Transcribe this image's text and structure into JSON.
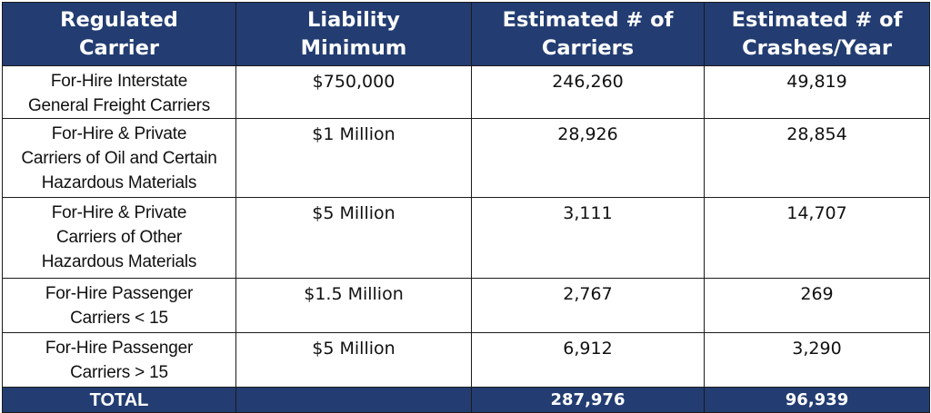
{
  "headers": {
    "carrier": [
      "Regulated",
      "Carrier"
    ],
    "liability": [
      "Liability",
      "Minimum"
    ],
    "carriers": [
      "Estimated # of",
      "Carriers"
    ],
    "crashes": [
      "Estimated # of",
      "Crashes/Year"
    ]
  },
  "rows": [
    {
      "carrier": [
        "For-Hire Interstate",
        "General Freight Carriers"
      ],
      "liability": "$750,000",
      "carriers": "246,260",
      "crashes": "49,819"
    },
    {
      "carrier": [
        "For-Hire & Private",
        "Carriers of Oil and Certain",
        "Hazardous Materials"
      ],
      "liability": "$1 Million",
      "carriers": "28,926",
      "crashes": "28,854"
    },
    {
      "carrier": [
        "For-Hire & Private",
        "Carriers of Other",
        "Hazardous Materials"
      ],
      "liability": "$5 Million",
      "carriers": "3,111",
      "crashes": "14,707"
    },
    {
      "carrier": [
        "For-Hire Passenger",
        "Carriers < 15"
      ],
      "liability": "$1.5 Million",
      "carriers": "2,767",
      "crashes": "269"
    },
    {
      "carrier": [
        "For-Hire Passenger",
        "Carriers > 15"
      ],
      "liability": "$5 Million",
      "carriers": "6,912",
      "crashes": "3,290"
    }
  ],
  "total": {
    "label": "TOTAL",
    "liability": "",
    "carriers": "287,976",
    "crashes": "96,939"
  },
  "colors": {
    "header_bg": "#233d72",
    "header_text": "#ffffff",
    "border": "#1b1b1b"
  }
}
